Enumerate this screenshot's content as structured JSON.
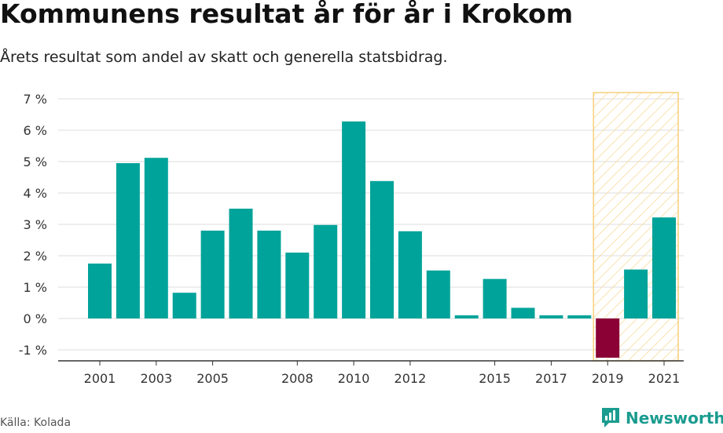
{
  "header": {
    "title": "Kommunens resultat år för år i Krokom",
    "subtitle": "Årets resultat som andel av skatt och generella statsbidrag."
  },
  "footer": {
    "source": "Källa: Kolada",
    "brand": "Newsworthy"
  },
  "colors": {
    "positive": "#00a39a",
    "negative": "#8b0035",
    "highlight_border": "#f5cf7a",
    "highlight_hatch": "#f7dc9a",
    "grid": "#dddddd",
    "brand": "#1a9c8f"
  },
  "chart_data": {
    "type": "bar",
    "years": [
      2001,
      2002,
      2003,
      2004,
      2005,
      2006,
      2007,
      2008,
      2009,
      2010,
      2011,
      2012,
      2013,
      2014,
      2015,
      2016,
      2017,
      2018,
      2019,
      2020,
      2021
    ],
    "values": [
      1.75,
      4.95,
      5.12,
      0.82,
      2.8,
      3.5,
      2.8,
      2.1,
      2.98,
      6.28,
      4.38,
      2.78,
      1.53,
      0.1,
      1.26,
      0.34,
      0.1,
      0.1,
      -1.25,
      1.56,
      3.22
    ],
    "x_tick_labels": [
      "2001",
      "2003",
      "2005",
      "2008",
      "2010",
      "2012",
      "2015",
      "2017",
      "2019",
      "2021"
    ],
    "y_ticks": [
      -1,
      0,
      1,
      2,
      3,
      4,
      5,
      6,
      7
    ],
    "y_tick_labels": [
      "-1 %",
      "0 %",
      "1 %",
      "2 %",
      "3 %",
      "4 %",
      "5 %",
      "6 %",
      "7 %"
    ],
    "ylim": [
      -1.35,
      7.2
    ],
    "highlight_range": [
      2019,
      2021
    ],
    "grid": true,
    "xlabel": "",
    "ylabel": ""
  }
}
